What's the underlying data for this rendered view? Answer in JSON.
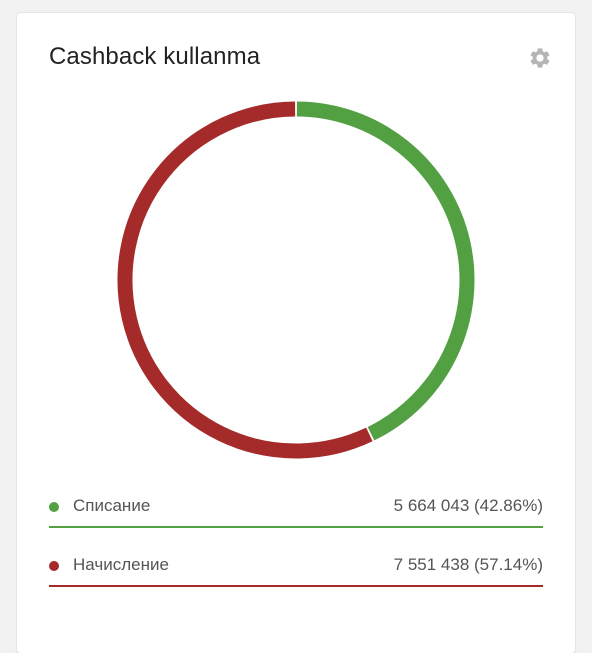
{
  "card": {
    "title": "Cashback kullanma",
    "settings_icon": "gear-icon"
  },
  "colors": {
    "writeoff": "#53a043",
    "accrual": "#a52a2a",
    "gear": "#b5b5b5",
    "title": "#222222"
  },
  "legend": [
    {
      "label": "Списание",
      "value_text": "5 664 043 (42.86%)"
    },
    {
      "label": "Начисление",
      "value_text": "7 551 438 (57.14%)"
    }
  ],
  "chart_data": {
    "type": "pie",
    "variant": "donut",
    "title": "Cashback kullanma",
    "categories": [
      "Списание",
      "Начисление"
    ],
    "values": [
      5664043,
      7551438
    ],
    "percentages": [
      42.86,
      57.14
    ],
    "colors": [
      "#53a043",
      "#a52a2a"
    ],
    "start_angle_deg": 0,
    "direction": "clockwise",
    "legend_position": "bottom"
  }
}
